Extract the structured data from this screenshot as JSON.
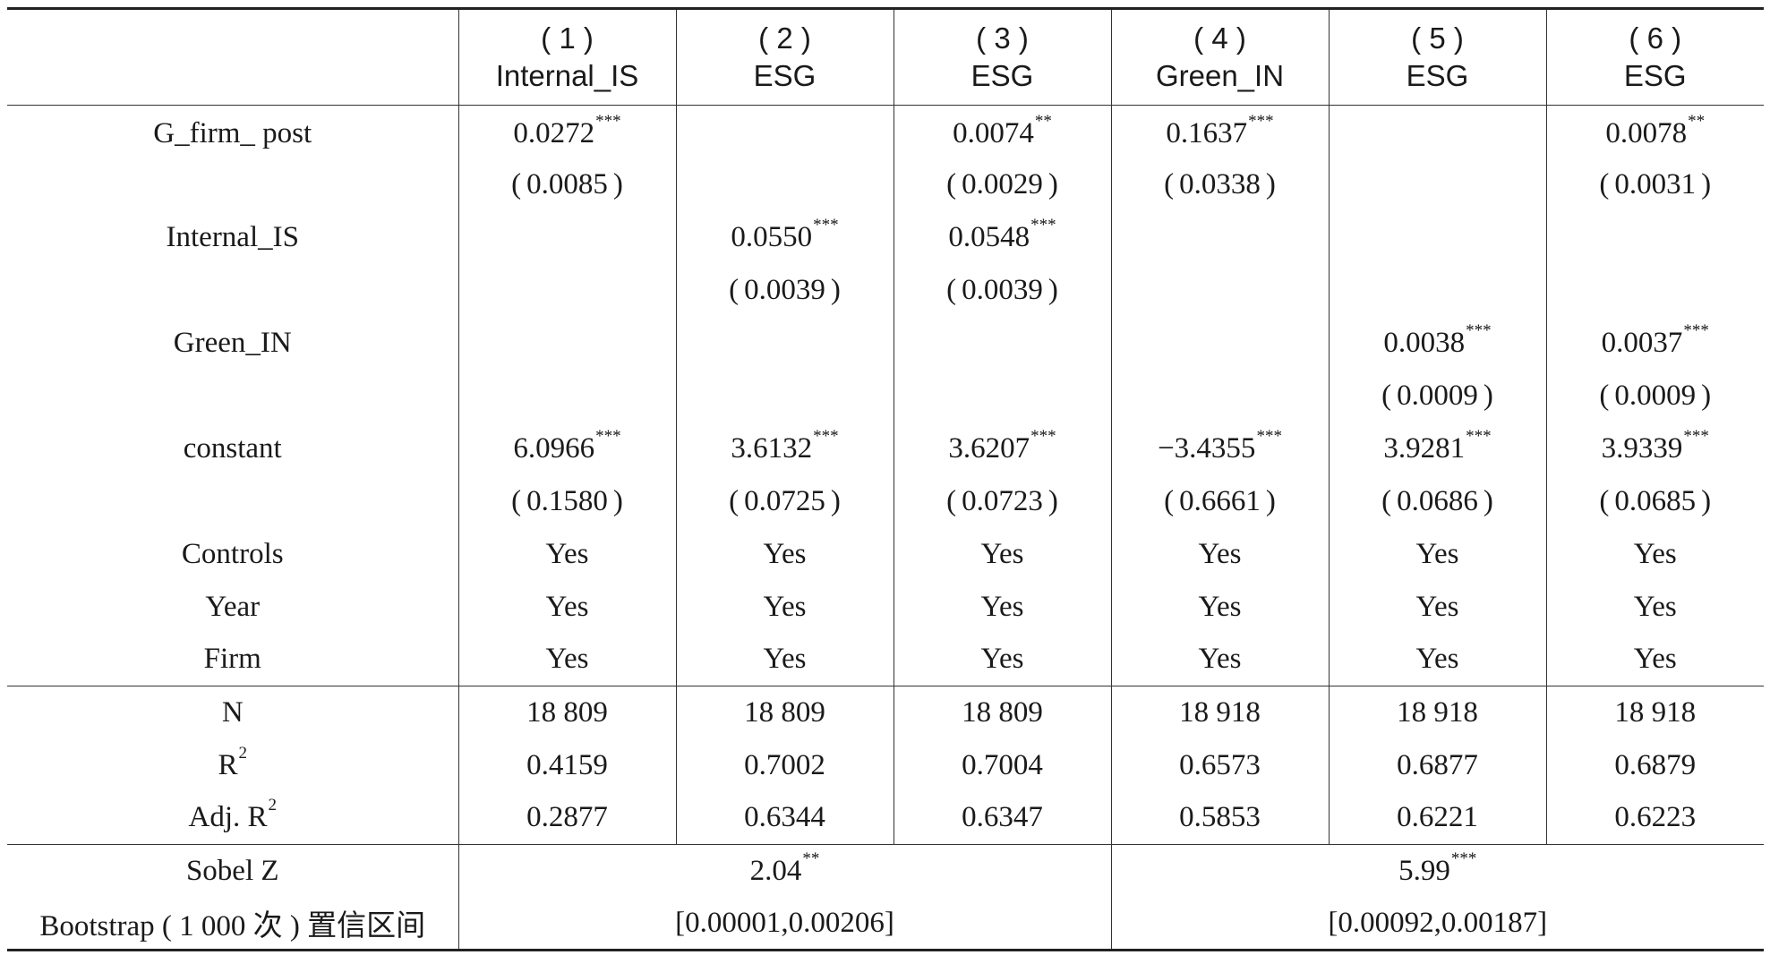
{
  "table": {
    "header": {
      "stub": "",
      "columns": [
        {
          "num": "( 1 )",
          "dep": "Internal_IS"
        },
        {
          "num": "( 2 )",
          "dep": "ESG"
        },
        {
          "num": "( 3 )",
          "dep": "ESG"
        },
        {
          "num": "( 4 )",
          "dep": "Green_IN"
        },
        {
          "num": "( 5 )",
          "dep": "ESG"
        },
        {
          "num": "( 6 )",
          "dep": "ESG"
        }
      ]
    },
    "rows": {
      "g_firm_post": {
        "label": "G_firm_ post",
        "coef": [
          {
            "v": "0.0272",
            "s": "***"
          },
          {
            "v": "",
            "s": ""
          },
          {
            "v": "0.0074",
            "s": "**"
          },
          {
            "v": "0.1637",
            "s": "***"
          },
          {
            "v": "",
            "s": ""
          },
          {
            "v": "0.0078",
            "s": "**"
          }
        ],
        "se": [
          "0.0085",
          "",
          "0.0029",
          "0.0338",
          "",
          "0.0031"
        ]
      },
      "internal_is": {
        "label": "Internal_IS",
        "coef": [
          {
            "v": "",
            "s": ""
          },
          {
            "v": "0.0550",
            "s": "***"
          },
          {
            "v": "0.0548",
            "s": "***"
          },
          {
            "v": "",
            "s": ""
          },
          {
            "v": "",
            "s": ""
          },
          {
            "v": "",
            "s": ""
          }
        ],
        "se": [
          "",
          "0.0039",
          "0.0039",
          "",
          "",
          ""
        ]
      },
      "green_in": {
        "label": "Green_IN",
        "coef": [
          {
            "v": "",
            "s": ""
          },
          {
            "v": "",
            "s": ""
          },
          {
            "v": "",
            "s": ""
          },
          {
            "v": "",
            "s": ""
          },
          {
            "v": "0.0038",
            "s": "***"
          },
          {
            "v": "0.0037",
            "s": "***"
          }
        ],
        "se": [
          "",
          "",
          "",
          "",
          "0.0009",
          "0.0009"
        ]
      },
      "constant": {
        "label": "constant",
        "coef": [
          {
            "v": "6.0966",
            "s": "***"
          },
          {
            "v": "3.6132",
            "s": "***"
          },
          {
            "v": "3.6207",
            "s": "***"
          },
          {
            "v": "−3.4355",
            "s": "***"
          },
          {
            "v": "3.9281",
            "s": "***"
          },
          {
            "v": "3.9339",
            "s": "***"
          }
        ],
        "se": [
          "0.1580",
          "0.0725",
          "0.0723",
          "0.6661",
          "0.0686",
          "0.0685"
        ]
      },
      "controls": {
        "label": "Controls",
        "values": [
          "Yes",
          "Yes",
          "Yes",
          "Yes",
          "Yes",
          "Yes"
        ]
      },
      "year": {
        "label": "Year",
        "values": [
          "Yes",
          "Yes",
          "Yes",
          "Yes",
          "Yes",
          "Yes"
        ]
      },
      "firm": {
        "label": "Firm",
        "values": [
          "Yes",
          "Yes",
          "Yes",
          "Yes",
          "Yes",
          "Yes"
        ]
      },
      "n": {
        "label": "N",
        "values": [
          "18 809",
          "18 809",
          "18 809",
          "18 918",
          "18 918",
          "18 918"
        ]
      },
      "r2": {
        "label": "R",
        "sup": "2",
        "values": [
          "0.4159",
          "0.7002",
          "0.7004",
          "0.6573",
          "0.6877",
          "0.6879"
        ]
      },
      "adj_r2": {
        "label": "Adj. R",
        "sup": "2",
        "values": [
          "0.2877",
          "0.6344",
          "0.6347",
          "0.5853",
          "0.6221",
          "0.6223"
        ]
      },
      "sobel": {
        "label": "Sobel Z",
        "left": {
          "v": "2.04",
          "s": "**"
        },
        "right": {
          "v": "5.99",
          "s": "***"
        }
      },
      "bootstrap": {
        "label": "Bootstrap ( 1 000 次 ) 置信区间",
        "left": "[0.00001,0.00206]",
        "right": "[0.00092,0.00187]"
      }
    },
    "paren_open": "(",
    "paren_close": ")"
  }
}
